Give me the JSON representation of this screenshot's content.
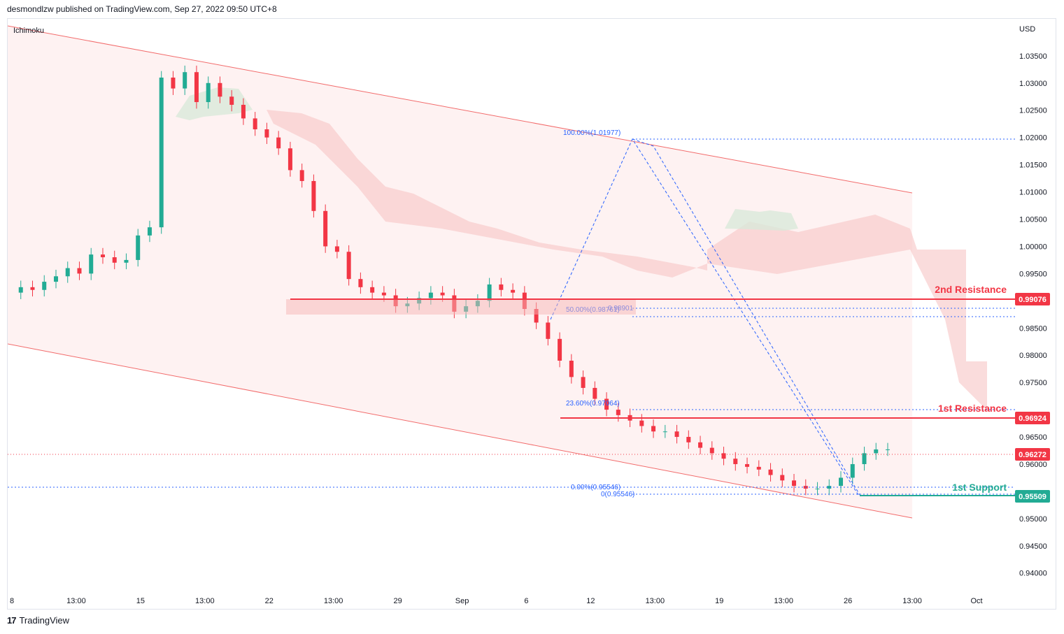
{
  "header": {
    "published": "desmondlzw published on TradingView.com, Sep 27, 2022 09:50 UTC+8"
  },
  "footer": {
    "logo": "17",
    "brand": "TradingView"
  },
  "chart_data": {
    "type": "candlestick",
    "indicator": "Ichimoku",
    "currency": "USD",
    "y_ticks": [
      "1.03500",
      "1.03000",
      "1.02500",
      "1.02000",
      "1.01500",
      "1.01000",
      "1.00500",
      "1.00000",
      "0.99500",
      "0.98500",
      "0.98000",
      "0.97500",
      "0.96500",
      "0.96000",
      "0.95000",
      "0.94500",
      "0.94000"
    ],
    "ylim": [
      0.9365,
      1.0405
    ],
    "x_ticks": [
      "8",
      "13:00",
      "15",
      "13:00",
      "22",
      "13:00",
      "29",
      "Sep",
      "6",
      "12",
      "13:00",
      "19",
      "13:00",
      "26",
      "13:00",
      "Oct"
    ],
    "levels": [
      {
        "name": "2nd Resistance",
        "value": "0.99076",
        "color": "#f23645"
      },
      {
        "name": "1st Resistance",
        "value": "0.96924",
        "color": "#f23645"
      },
      {
        "name": "1st Support",
        "value": "0.95509",
        "color": "#22ab94"
      }
    ],
    "last_price": "0.96272",
    "fib_labels": [
      "100.00%(1.01977)",
      "50.00%(0.98761)",
      "0.98901",
      "23.60%(0.97064)",
      "0.00%(0.95546)",
      "0(0.95546)"
    ],
    "close_series": [
      0.9915,
      0.9925,
      0.992,
      0.9935,
      0.9945,
      0.996,
      0.995,
      0.9985,
      0.998,
      0.997,
      0.9975,
      1.002,
      1.0035,
      1.031,
      1.029,
      1.032,
      1.0265,
      1.03,
      1.0275,
      1.026,
      1.0235,
      1.0215,
      1.02,
      1.018,
      1.014,
      1.012,
      1.0065,
      1.0,
      0.999,
      0.994,
      0.9925,
      0.9915,
      0.991,
      0.989,
      0.9895,
      0.9905,
      0.9915,
      0.991,
      0.988,
      0.989,
      0.99,
      0.993,
      0.992,
      0.9915,
      0.9885,
      0.986,
      0.983,
      0.979,
      0.976,
      0.974,
      0.972,
      0.97,
      0.969,
      0.968,
      0.967,
      0.966,
      0.966,
      0.965,
      0.964,
      0.963,
      0.962,
      0.961,
      0.96,
      0.9595,
      0.959,
      0.958,
      0.957,
      0.956,
      0.9555,
      0.9555,
      0.956,
      0.9575,
      0.96,
      0.962,
      0.9627,
      0.9627
    ]
  }
}
